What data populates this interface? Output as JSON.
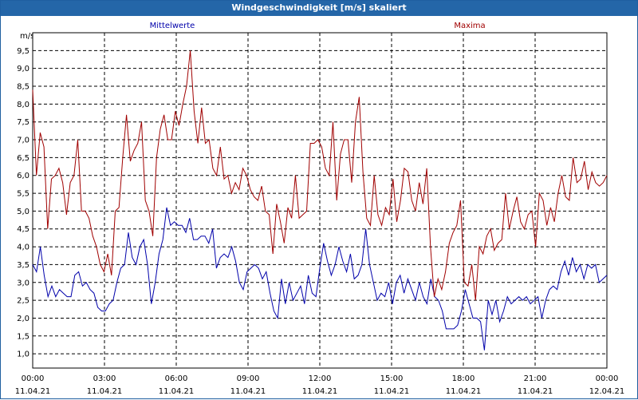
{
  "window": {
    "title": "Windgeschwindigkeit [m/s] skaliert"
  },
  "colors": {
    "mean": "#0000aa",
    "max": "#a00000",
    "grid": "#000000",
    "titlebar": "#2466a8"
  },
  "chart_data": {
    "type": "line",
    "title": "Windgeschwindigkeit [m/s] skaliert",
    "ylabel": "m/s",
    "xlabel": "",
    "ylim": [
      0.6,
      10.0
    ],
    "xlim": [
      0,
      24
    ],
    "grid": true,
    "y_ticks": [
      "1,0",
      "1,5",
      "2,0",
      "2,5",
      "3,0",
      "3,5",
      "4,0",
      "4,5",
      "5,0",
      "5,5",
      "6,0",
      "6,5",
      "7,0",
      "7,5",
      "8,0",
      "8,5",
      "9,0",
      "9,5"
    ],
    "x_ticks": [
      {
        "time": "00:00",
        "date": "11.04.21"
      },
      {
        "time": "03:00",
        "date": "11.04.21"
      },
      {
        "time": "06:00",
        "date": "11.04.21"
      },
      {
        "time": "09:00",
        "date": "11.04.21"
      },
      {
        "time": "12:00",
        "date": "11.04.21"
      },
      {
        "time": "15:00",
        "date": "11.04.21"
      },
      {
        "time": "18:00",
        "date": "11.04.21"
      },
      {
        "time": "21:00",
        "date": "11.04.21"
      },
      {
        "time": "00:00",
        "date": "12.04.21"
      }
    ],
    "series": [
      {
        "name": "Mittelwerte",
        "values": [
          3.5,
          3.3,
          4.0,
          3.2,
          2.6,
          2.9,
          2.6,
          2.8,
          2.7,
          2.6,
          2.6,
          3.2,
          3.3,
          2.9,
          3.0,
          2.8,
          2.7,
          2.3,
          2.2,
          2.2,
          2.4,
          2.5,
          3.0,
          3.4,
          3.5,
          4.4,
          3.7,
          3.5,
          4.0,
          4.2,
          3.5,
          2.4,
          3.0,
          3.8,
          4.2,
          5.1,
          4.6,
          4.7,
          4.6,
          4.6,
          4.4,
          4.8,
          4.2,
          4.2,
          4.3,
          4.3,
          4.1,
          4.5,
          3.4,
          3.7,
          3.8,
          3.7,
          4.0,
          3.6,
          3.0,
          2.8,
          3.3,
          3.4,
          3.5,
          3.4,
          3.1,
          3.3,
          2.7,
          2.2,
          2.0,
          3.1,
          2.4,
          3.0,
          2.5,
          2.7,
          2.9,
          2.4,
          3.2,
          2.7,
          2.6,
          3.4,
          4.1,
          3.6,
          3.2,
          3.5,
          4.0,
          3.6,
          3.3,
          3.8,
          3.1,
          3.2,
          3.5,
          4.5,
          3.5,
          3.0,
          2.5,
          2.7,
          2.6,
          3.0,
          2.4,
          3.0,
          3.2,
          2.7,
          3.1,
          2.8,
          2.5,
          3.0,
          2.6,
          2.4,
          3.1,
          2.6,
          2.5,
          2.2,
          1.7,
          1.7,
          1.7,
          1.8,
          2.2,
          2.8,
          2.4,
          2.0,
          2.0,
          1.9,
          1.1,
          2.5,
          2.1,
          2.5,
          1.9,
          2.2,
          2.6,
          2.4,
          2.5,
          2.6,
          2.5,
          2.6,
          2.4,
          2.5,
          2.6,
          2.0,
          2.5,
          2.8,
          2.9,
          2.8,
          3.3,
          3.6,
          3.2,
          3.7,
          3.3,
          3.5,
          3.1,
          3.5,
          3.4,
          3.5,
          3.0,
          3.1,
          3.2
        ]
      },
      {
        "name": "Maxima",
        "values": [
          8.4,
          6.0,
          7.2,
          6.8,
          4.5,
          5.9,
          6.0,
          6.2,
          5.8,
          4.9,
          5.8,
          6.0,
          7.0,
          5.0,
          5.0,
          4.8,
          4.3,
          4.0,
          3.5,
          3.3,
          3.8,
          3.2,
          5.0,
          5.1,
          6.5,
          7.7,
          6.4,
          6.7,
          6.9,
          7.5,
          5.3,
          5.0,
          4.3,
          6.5,
          7.3,
          7.7,
          7.0,
          7.0,
          7.8,
          7.4,
          8.0,
          8.5,
          9.5,
          7.8,
          6.9,
          7.9,
          6.9,
          7.0,
          6.2,
          6.0,
          6.8,
          5.9,
          6.0,
          5.5,
          5.8,
          5.6,
          6.2,
          6.0,
          5.6,
          5.4,
          5.3,
          5.7,
          5.0,
          4.9,
          3.8,
          5.2,
          4.7,
          4.1,
          5.1,
          4.8,
          6.0,
          4.8,
          4.9,
          5.0,
          6.9,
          6.9,
          7.0,
          6.8,
          6.2,
          6.0,
          7.5,
          5.3,
          6.6,
          7.0,
          7.0,
          5.8,
          7.5,
          8.2,
          6.1,
          4.8,
          4.6,
          6.0,
          4.9,
          4.6,
          5.1,
          4.9,
          5.9,
          4.7,
          5.3,
          6.2,
          6.1,
          5.3,
          5.0,
          5.8,
          5.2,
          6.2,
          4.0,
          2.6,
          3.1,
          2.8,
          3.3,
          4.1,
          4.4,
          4.6,
          5.3,
          3.0,
          2.9,
          3.5,
          2.5,
          4.0,
          3.8,
          4.3,
          4.5,
          3.9,
          4.1,
          4.2,
          5.5,
          4.5,
          5.0,
          5.4,
          4.7,
          4.5,
          4.9,
          5.0,
          4.0,
          5.5,
          5.3,
          4.6,
          5.1,
          4.7,
          5.5,
          6.0,
          5.4,
          5.3,
          6.5,
          5.8,
          5.9,
          6.4,
          5.6,
          6.1,
          5.8,
          5.7,
          5.8,
          6.0
        ]
      }
    ]
  }
}
